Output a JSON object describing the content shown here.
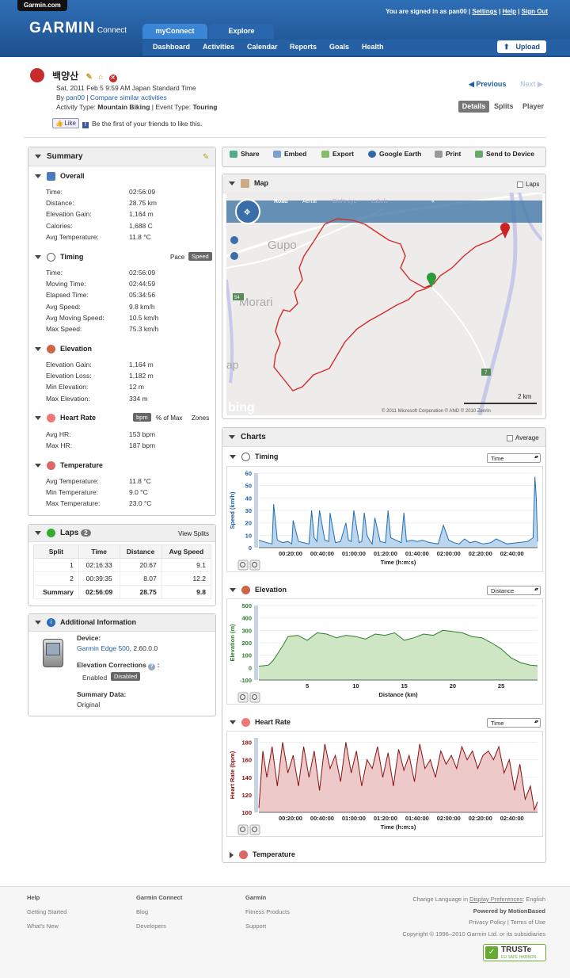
{
  "header": {
    "site_tab": "Garmin.com",
    "logo": "GARMIN",
    "logo_sub": "Connect",
    "signed_in_prefix": "You are signed in as pan00",
    "settings": "Settings",
    "help": "Help",
    "sign_out": "Sign Out",
    "tabs": [
      "myConnect",
      "Explore"
    ],
    "nav": [
      "Dashboard",
      "Activities",
      "Calendar",
      "Reports",
      "Goals",
      "Health"
    ],
    "upload": "Upload"
  },
  "activity": {
    "title": "백양산",
    "date": "Sat, 2011 Feb 5 9:59 AM Japan Standard Time",
    "by": "By",
    "user": "pan00",
    "compare": "Compare similar activities",
    "activity_type_label": "Activity Type:",
    "activity_type": "Mountain Biking",
    "event_type_label": "Event Type:",
    "event_type": "Touring",
    "like": "Like",
    "like_text": "Be the first of your friends to like this.",
    "previous": "Previous",
    "next": "Next",
    "view_tabs": [
      "Details",
      "Splits",
      "Player"
    ]
  },
  "summary": {
    "title": "Summary",
    "overall": {
      "title": "Overall",
      "rows": [
        [
          "Time:",
          "02:56:09"
        ],
        [
          "Distance:",
          "28.75 km"
        ],
        [
          "Elevation Gain:",
          "1,164 m"
        ],
        [
          "Calories:",
          "1,688 C"
        ],
        [
          "Avg Temperature:",
          "11.8 °C"
        ]
      ]
    },
    "timing": {
      "title": "Timing",
      "pace": "Pace",
      "speed": "Speed",
      "rows": [
        [
          "Time:",
          "02:56:09"
        ],
        [
          "Moving Time:",
          "02:44:59"
        ],
        [
          "Elapsed Time:",
          "05:34:56"
        ],
        [
          "Avg Speed:",
          "9.8 km/h"
        ],
        [
          "Avg Moving Speed:",
          "10.5 km/h"
        ],
        [
          "Max Speed:",
          "75.3 km/h"
        ]
      ]
    },
    "elevation": {
      "title": "Elevation",
      "rows": [
        [
          "Elevation Gain:",
          "1,164 m"
        ],
        [
          "Elevation Loss:",
          "1,182 m"
        ],
        [
          "Min Elevation:",
          "12 m"
        ],
        [
          "Max Elevation:",
          "334 m"
        ]
      ]
    },
    "heart_rate": {
      "title": "Heart Rate",
      "bpm": "bpm",
      "pct_max": "% of Max",
      "zones": "Zones",
      "rows": [
        [
          "Avg HR:",
          "153 bpm"
        ],
        [
          "Max HR:",
          "187 bpm"
        ]
      ]
    },
    "temperature": {
      "title": "Temperature",
      "rows": [
        [
          "Avg Temperature:",
          "11.8 °C"
        ],
        [
          "Min Temperature:",
          "9.0 °C"
        ],
        [
          "Max Temperature:",
          "23.0 °C"
        ]
      ]
    }
  },
  "laps": {
    "title": "Laps",
    "count": "2",
    "view_splits": "View Splits",
    "columns": [
      "Split",
      "Time",
      "Distance",
      "Avg Speed"
    ],
    "rows": [
      [
        "1",
        "02:16:33",
        "20.67",
        "9.1"
      ],
      [
        "2",
        "00:39:35",
        "8.07",
        "12.2"
      ],
      [
        "Summary",
        "02:56:09",
        "28.75",
        "9.8"
      ]
    ]
  },
  "additional": {
    "title": "Additional Information",
    "device_label": "Device:",
    "device": "Garmin Edge 500",
    "device_ver": ", 2.60.0.0",
    "elev_corr_label": "Elevation Corrections",
    "enabled": "Enabled",
    "disabled": "Disabled",
    "summary_data_label": "Summary Data:",
    "summary_data": "Original"
  },
  "toolbar": [
    "Share",
    "Embed",
    "Export",
    "Google Earth",
    "Print",
    "Send to Device"
  ],
  "map": {
    "title": "Map",
    "laps": "Laps",
    "views": [
      "Road",
      "Aerial",
      "Bird's eye",
      "Labels"
    ],
    "places": [
      "Gupo",
      "Morari",
      "ap"
    ],
    "roads": [
      "54",
      "7"
    ],
    "scale": "2 km",
    "bing": "bing",
    "copyright": "© 2011 Microsoft Corporation  © AND  © 2010 Zenrin"
  },
  "charts": {
    "title": "Charts",
    "average": "Average",
    "temperature_title": "Temperature"
  },
  "chart_data": [
    {
      "type": "area",
      "title": "Timing",
      "selector": "Time",
      "ylabel": "Speed (km/h)",
      "xlabel": "Time (h:m:s)",
      "ylim": [
        0,
        60
      ],
      "yticks": [
        "60",
        "50",
        "40",
        "30",
        "20",
        "10",
        "0"
      ],
      "xticks": [
        "00:20:00",
        "00:40:00",
        "01:00:00",
        "01:20:00",
        "01:40:00",
        "02:00:00",
        "02:20:00",
        "02:40:00"
      ],
      "xlim": [
        0,
        10569
      ],
      "x": [
        0,
        300,
        500,
        560,
        700,
        900,
        1100,
        1250,
        1300,
        1500,
        1700,
        1900,
        2000,
        2100,
        2200,
        2300,
        2500,
        2650,
        2700,
        2900,
        3100,
        3300,
        3400,
        3500,
        3600,
        3800,
        3900,
        4000,
        4100,
        4200,
        4300,
        4400,
        4600,
        4800,
        4900,
        5000,
        5200,
        5400,
        5500,
        5600,
        5800,
        6000,
        6200,
        6500,
        6800,
        7000,
        7200,
        7400,
        7600,
        7800,
        8000,
        8200,
        8500,
        8800,
        9000,
        9400,
        9800,
        10200,
        10400,
        10470,
        10520,
        10569
      ],
      "values": [
        6,
        4,
        3,
        35,
        6,
        4,
        5,
        3,
        22,
        5,
        4,
        3,
        30,
        8,
        5,
        30,
        6,
        5,
        28,
        4,
        5,
        20,
        6,
        5,
        30,
        4,
        5,
        28,
        10,
        6,
        3,
        24,
        5,
        4,
        30,
        8,
        6,
        4,
        28,
        5,
        6,
        5,
        6,
        4,
        3,
        18,
        6,
        4,
        3,
        7,
        4,
        5,
        3,
        4,
        7,
        3,
        4,
        5,
        8,
        57,
        40,
        5
      ]
    },
    {
      "type": "area",
      "title": "Elevation",
      "selector": "Distance",
      "ylabel": "Elevation (m)",
      "xlabel": "Distance (km)",
      "ylim": [
        -100,
        500
      ],
      "yticks": [
        "500",
        "400",
        "300",
        "200",
        "100",
        "0",
        "-100"
      ],
      "xticks": [
        "5",
        "10",
        "15",
        "20",
        "25"
      ],
      "xlim": [
        0,
        28.75
      ],
      "x": [
        0,
        0.5,
        1,
        1.5,
        2,
        2.5,
        3,
        4,
        5,
        6,
        7,
        8,
        9,
        10,
        11,
        12,
        13,
        14,
        15,
        16,
        17,
        18,
        19,
        20,
        21,
        22,
        23,
        24,
        25,
        26,
        27,
        28,
        28.75
      ],
      "values": [
        12,
        15,
        20,
        60,
        120,
        180,
        250,
        260,
        220,
        280,
        270,
        240,
        260,
        250,
        230,
        270,
        260,
        280,
        220,
        240,
        270,
        260,
        300,
        290,
        280,
        250,
        240,
        200,
        150,
        80,
        40,
        20,
        15
      ]
    },
    {
      "type": "area",
      "title": "Heart Rate",
      "selector": "Time",
      "ylabel": "Heart Rate (bpm)",
      "xlabel": "Time (h:m:s)",
      "ylim": [
        100,
        185
      ],
      "yticks": [
        "180",
        "160",
        "140",
        "120",
        "100"
      ],
      "xticks": [
        "00:20:00",
        "00:40:00",
        "01:00:00",
        "01:20:00",
        "01:40:00",
        "02:00:00",
        "02:20:00",
        "02:40:00"
      ],
      "xlim": [
        0,
        10569
      ],
      "x": [
        0,
        150,
        300,
        500,
        700,
        900,
        1100,
        1300,
        1500,
        1700,
        1900,
        2100,
        2300,
        2500,
        2700,
        2900,
        3100,
        3300,
        3500,
        3700,
        3900,
        4100,
        4300,
        4500,
        4700,
        4900,
        5100,
        5300,
        5500,
        5700,
        5900,
        6100,
        6300,
        6500,
        6700,
        6900,
        7100,
        7300,
        7500,
        7700,
        7900,
        8100,
        8300,
        8500,
        8700,
        8900,
        9100,
        9300,
        9500,
        9700,
        9900,
        10100,
        10300,
        10450,
        10569
      ],
      "values": [
        105,
        170,
        140,
        175,
        130,
        180,
        145,
        165,
        130,
        175,
        140,
        170,
        125,
        178,
        150,
        165,
        135,
        180,
        145,
        170,
        130,
        160,
        150,
        175,
        140,
        168,
        130,
        172,
        148,
        165,
        135,
        178,
        150,
        160,
        140,
        170,
        155,
        165,
        150,
        175,
        160,
        170,
        150,
        165,
        170,
        160,
        175,
        145,
        160,
        125,
        155,
        115,
        130,
        103,
        112
      ]
    }
  ],
  "footer": {
    "col1": [
      "Help",
      "Getting Started",
      "What's New"
    ],
    "col2": [
      "Garmin Connect",
      "Blog",
      "Developers"
    ],
    "col3": [
      "Garmin",
      "Fitness Products",
      "Support"
    ],
    "lang_prefix": "Change Language in",
    "lang_link": "Display Preferences",
    "lang_value": ": English",
    "powered": "Powered by MotionBased",
    "privacy": "Privacy Policy",
    "terms": "Terms of Use",
    "copyright": "Copyright © 1996–2010 Garmin Ltd. or its subsidiaries",
    "truste": "TRUSTe",
    "truste_sub": "EU SAFE HARBOR"
  }
}
